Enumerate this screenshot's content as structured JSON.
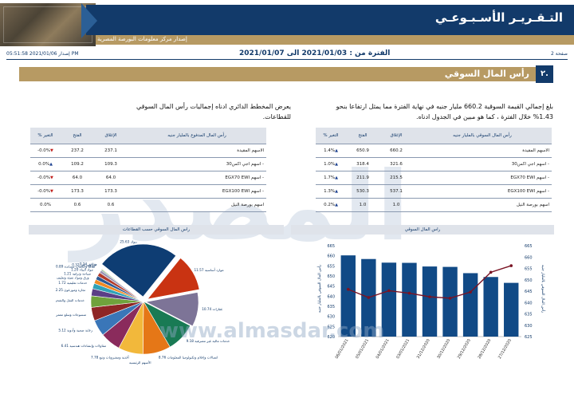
{
  "header": {
    "title": "التـقـريـر الأسـبـوعـي",
    "subtitle": "إصدار مركز معلومات البورصة المصرية",
    "issue_stamp": "إصدار 2021/01/06 05:51:58 PM",
    "period": "الفترة من : 2021/01/03 الى 2021/01/07",
    "page_label": "صفحة 2"
  },
  "section": {
    "number": "٢.",
    "title": "رأس المال السوقي"
  },
  "paragraphs": {
    "right": "بلغ إجمالي القيمة السوقية 660.2 مليار جنيه في نهاية الفترة مما يمثل ارتفاعا بنحو 1.43% خلال الفترة ، كما هو مبين في الجدول ادناه.",
    "left": "يعرض المخطط الدائري ادناه إجماليات رأس المال السوقي للقطاعات."
  },
  "table_right": {
    "headers": [
      "رأس المال السوقي بالمليار جنيه",
      "الإغلاق",
      "الفتح",
      "% التغير"
    ],
    "rows": [
      {
        "name": "الاسهم المقيدة",
        "close": "660.2",
        "open": "650.9",
        "change": "1.4%",
        "dir": "up"
      },
      {
        "name": "- اسهم اجي اكس30",
        "close": "321.6",
        "open": "318.4",
        "change": "1.0%",
        "dir": "up"
      },
      {
        "name": "- اسهم EGX70 EWI",
        "close": "215.5",
        "open": "211.9",
        "change": "1.7%",
        "dir": "up"
      },
      {
        "name": "- اسهم EGX100 EWI",
        "close": "537.1",
        "open": "530.3",
        "change": "1.3%",
        "dir": "up"
      },
      {
        "name": "اسهم بورصة النيل",
        "close": "1.0",
        "open": "1.0",
        "change": "0.2%",
        "dir": "up"
      }
    ]
  },
  "table_left": {
    "headers": [
      "رأس المال المدفوع بالمليار جنيه",
      "الإغلاق",
      "الفتح",
      "% التغير"
    ],
    "rows": [
      {
        "name": "الاسهم المقيدة",
        "close": "237.1",
        "open": "237.2",
        "change": "-0.0%",
        "dir": "down"
      },
      {
        "name": "- اسهم اجي اكس30",
        "close": "109.3",
        "open": "109.2",
        "change": "0.0%",
        "dir": "up"
      },
      {
        "name": "- اسهم EGX70 EWI",
        "close": "64.0",
        "open": "64.0",
        "change": "-0.0%",
        "dir": "down"
      },
      {
        "name": "- اسهم EGX100 EWI",
        "close": "173.3",
        "open": "173.3",
        "change": "-0.0%",
        "dir": "down"
      },
      {
        "name": "اسهم بورصة النيل",
        "close": "0.6",
        "open": "0.6",
        "change": "0.0%",
        "dir": "none"
      }
    ]
  },
  "chart_data": [
    {
      "type": "bar",
      "title": "راس المال السوقي",
      "ylabel": "رأس المال السوقي بالمليار جنيه",
      "categories": [
        "06/01/2021",
        "05/01/2021",
        "04/01/2021",
        "03/01/2021",
        "31/12/2020",
        "30/12/2020",
        "29/12/2020",
        "28/12/2020",
        "27/12/2020"
      ],
      "series": [
        {
          "kind": "bar",
          "values": [
            660.2,
            658.4,
            656.6,
            656.5,
            654.7,
            654.5,
            651.4,
            649.5,
            646.6
          ]
        },
        {
          "kind": "line",
          "values": [
            645.8,
            642.2,
            645.2,
            644.1,
            642.5,
            641.9,
            644.6,
            653.3,
            656.2
          ]
        }
      ],
      "y_left_ticks": [
        "665",
        "660",
        "655",
        "650",
        "645",
        "640",
        "635",
        "630",
        "625",
        "620"
      ],
      "y_right_ticks": [
        "665",
        "660",
        "655",
        "650",
        "645",
        "640",
        "635",
        "630",
        "625"
      ],
      "ylim_left": [
        620,
        665
      ],
      "ylim_right": [
        625,
        665
      ],
      "colors": {
        "bar": "#114a86",
        "line": "#7a1424"
      }
    },
    {
      "type": "pie",
      "title": "راس المال السوقي حسب القطاعات",
      "slices": [
        {
          "label": "بنوك",
          "value": 25.63,
          "display": "25.63",
          "color": "#0e3d73"
        },
        {
          "label": "موارد أساسية",
          "value": 11.57,
          "display": "11.57",
          "color": "#c93312"
        },
        {
          "label": "عقارات",
          "value": 10.74,
          "display": "10.74",
          "color": "#7d7497"
        },
        {
          "label": "خدمات مالية غير مصرفية",
          "value": 9.18,
          "display": "9.18",
          "color": "#197a54"
        },
        {
          "label": "اتصالات وإعلام وتكنولوجيا المعلومات",
          "value": 8.76,
          "display": "8.76",
          "color": "#e57717"
        },
        {
          "label": "أغذية ومشروبات وتبغ",
          "value": 7.78,
          "display": "7.78",
          "color": "#f2b83b"
        },
        {
          "label": "مقاولات وإنشاءات هندسية",
          "value": 6.41,
          "display": "6.41",
          "color": "#8a2b5c"
        },
        {
          "label": "رعاية صحية وأدوية",
          "value": 5.12,
          "display": "5.12",
          "color": "#3a76b8"
        },
        {
          "label": "منسوجات وسلع معمرة",
          "value": 4.23,
          "display": "4.23",
          "color": "#8e2626"
        },
        {
          "label": "خدمات النقل والشحن",
          "value": 3.6,
          "display": "3.60",
          "color": "#6fa23c"
        },
        {
          "label": "تجارة وموزعون",
          "value": 2.25,
          "display": "2.25",
          "color": "#5b3f86"
        },
        {
          "label": "خدمات تعليمية",
          "value": 1.72,
          "display": "1.72",
          "color": "#2fa2b8"
        },
        {
          "label": "ورق ومواد تعبئة وتغليف",
          "value": 1.3,
          "display": "1.30",
          "color": "#f08a24"
        },
        {
          "label": "سياحة وترفيه",
          "value": 1.21,
          "display": "1.21",
          "color": "#2d5a94"
        },
        {
          "label": "مواد البناء",
          "value": 1.2,
          "display": "1.20",
          "color": "#b23b2a"
        },
        {
          "label": "طاقة وخدمات مساندة",
          "value": 0.89,
          "display": "0.89",
          "color": "#9d95b4"
        },
        {
          "label": "غاز ومرافق",
          "value": 0.32,
          "display": "0.32",
          "color": "#2e8a5a"
        },
        {
          "label": "مرافق",
          "value": 0.24,
          "display": "0.24",
          "color": "#f4c860"
        }
      ],
      "legend_extra": "الأسهم الرئيسية"
    }
  ],
  "watermark": {
    "text": "المصدر",
    "url": "www.almasdar.com"
  }
}
